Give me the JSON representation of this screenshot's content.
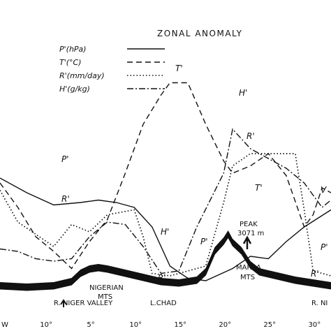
{
  "chart_data": {
    "type": "line",
    "title": "ZONAL ANOMALY",
    "x_unit": "degrees longitude (E)",
    "xlim": [
      0,
      37
    ],
    "x_ticks": [
      {
        "x": 0,
        "label": "W"
      },
      {
        "x": 5,
        "label": "10°"
      },
      {
        "x": 10,
        "label": "5°"
      },
      {
        "x": 15,
        "label": "10°"
      },
      {
        "x": 20,
        "label": "15°"
      },
      {
        "x": 25,
        "label": "20°"
      },
      {
        "x": 30,
        "label": "25°"
      },
      {
        "x": 35,
        "label": "30°"
      }
    ],
    "legend": [
      {
        "name": "P'(hPa)",
        "style": "solid"
      },
      {
        "name": "T'(°C)",
        "style": "dashed"
      },
      {
        "name": "R'(mm/day)",
        "style": "dotted"
      },
      {
        "name": "H'(g/kg)",
        "style": "dashdot"
      }
    ],
    "series": [
      {
        "name": "P'(hPa)",
        "label": "P'",
        "style": "solid",
        "points": [
          [
            0,
            0.5
          ],
          [
            3,
            0.44
          ],
          [
            6,
            0.39
          ],
          [
            9,
            0.4
          ],
          [
            11,
            0.41
          ],
          [
            13,
            0.4
          ],
          [
            15,
            0.38
          ],
          [
            17,
            0.3
          ],
          [
            19,
            0.14
          ],
          [
            21,
            0.09
          ],
          [
            23,
            0.08
          ],
          [
            26,
            0.13
          ],
          [
            28,
            0.18
          ],
          [
            30,
            0.17
          ],
          [
            32,
            0.24
          ],
          [
            34,
            0.3
          ],
          [
            37,
            0.37
          ]
        ]
      },
      {
        "name": "T'(°C)",
        "label": "T'",
        "style": "dashed",
        "points": [
          [
            0,
            0.48
          ],
          [
            2,
            0.38
          ],
          [
            4,
            0.26
          ],
          [
            6,
            0.2
          ],
          [
            8,
            0.13
          ],
          [
            10,
            0.24
          ],
          [
            12,
            0.33
          ],
          [
            14,
            0.52
          ],
          [
            16,
            0.72
          ],
          [
            18,
            0.84
          ],
          [
            19,
            0.89
          ],
          [
            21,
            0.89
          ],
          [
            23,
            0.72
          ],
          [
            25,
            0.57
          ],
          [
            26,
            0.52
          ],
          [
            28,
            0.55
          ],
          [
            30,
            0.6
          ],
          [
            32,
            0.51
          ],
          [
            34,
            0.3
          ],
          [
            35,
            0.35
          ],
          [
            36,
            0.46
          ],
          [
            37,
            0.44
          ]
        ]
      },
      {
        "name": "R'(mm/day)",
        "label": "R'",
        "style": "dotted",
        "points": [
          [
            0,
            0.45
          ],
          [
            2,
            0.32
          ],
          [
            4,
            0.27
          ],
          [
            6,
            0.22
          ],
          [
            8,
            0.31
          ],
          [
            10,
            0.28
          ],
          [
            12,
            0.35
          ],
          [
            15,
            0.37
          ],
          [
            16,
            0.26
          ],
          [
            17,
            0.11
          ],
          [
            19,
            0.1
          ],
          [
            21,
            0.12
          ],
          [
            23,
            0.14
          ],
          [
            25,
            0.4
          ],
          [
            26,
            0.55
          ],
          [
            28,
            0.6
          ],
          [
            30,
            0.6
          ],
          [
            33,
            0.6
          ],
          [
            34,
            0.37
          ],
          [
            35,
            0.12
          ],
          [
            37,
            0.1
          ]
        ]
      },
      {
        "name": "H'(g/kg)",
        "label": "H'",
        "style": "dashdot",
        "points": [
          [
            0,
            0.21
          ],
          [
            2,
            0.2
          ],
          [
            4,
            0.17
          ],
          [
            6,
            0.16
          ],
          [
            8,
            0.17
          ],
          [
            10,
            0.26
          ],
          [
            12,
            0.32
          ],
          [
            14,
            0.31
          ],
          [
            16,
            0.22
          ],
          [
            18,
            0.11
          ],
          [
            20,
            0.12
          ],
          [
            22,
            0.3
          ],
          [
            25,
            0.52
          ],
          [
            26,
            0.7
          ],
          [
            28,
            0.62
          ],
          [
            30,
            0.58
          ],
          [
            32,
            0.54
          ],
          [
            34,
            0.48
          ],
          [
            36,
            0.38
          ],
          [
            37,
            0.41
          ]
        ]
      }
    ],
    "curve_labels": [
      {
        "series": "P'(hPa)",
        "text": "P'"
      },
      {
        "series": "P'(hPa)",
        "text": "P'"
      },
      {
        "series": "P'(hPa)",
        "text": "P'"
      },
      {
        "series": "T'(°C)",
        "text": "T'"
      },
      {
        "series": "T'(°C)",
        "text": "T'"
      },
      {
        "series": "T'(°C)",
        "text": "V"
      },
      {
        "series": "R'(mm/day)",
        "text": "R'"
      },
      {
        "series": "R'(mm/day)",
        "text": "R'"
      },
      {
        "series": "R'(mm/day)",
        "text": "R'"
      },
      {
        "series": "R'(mm/day)",
        "text": "R'"
      },
      {
        "series": "H'(g/kg)",
        "text": "H'"
      },
      {
        "series": "H'(g/kg)",
        "text": "H'"
      }
    ],
    "topography": {
      "profile": [
        [
          0,
          0.1
        ],
        [
          3,
          0.09
        ],
        [
          6,
          0.1
        ],
        [
          8,
          0.13
        ],
        [
          9,
          0.19
        ],
        [
          10,
          0.22
        ],
        [
          11,
          0.23
        ],
        [
          12,
          0.22
        ],
        [
          14,
          0.19
        ],
        [
          16,
          0.16
        ],
        [
          18,
          0.13
        ],
        [
          20,
          0.12
        ],
        [
          22,
          0.14
        ],
        [
          23,
          0.2
        ],
        [
          24,
          0.35
        ],
        [
          25,
          0.42
        ],
        [
          25.5,
          0.47
        ],
        [
          26,
          0.41
        ],
        [
          27,
          0.35
        ],
        [
          28,
          0.25
        ],
        [
          29,
          0.2
        ],
        [
          31,
          0.17
        ],
        [
          33,
          0.14
        ],
        [
          35,
          0.12
        ],
        [
          37,
          0.1
        ]
      ],
      "peak_label": "PEAK",
      "peak_value": "3071 m",
      "labels": [
        {
          "text": "NIGERIAN"
        },
        {
          "text": "MTS"
        },
        {
          "text": "R. NIGER VALLEY"
        },
        {
          "text": "L.CHAD"
        },
        {
          "text": "MARRA"
        },
        {
          "text": "MTS"
        },
        {
          "text": "R. NI"
        }
      ]
    }
  }
}
